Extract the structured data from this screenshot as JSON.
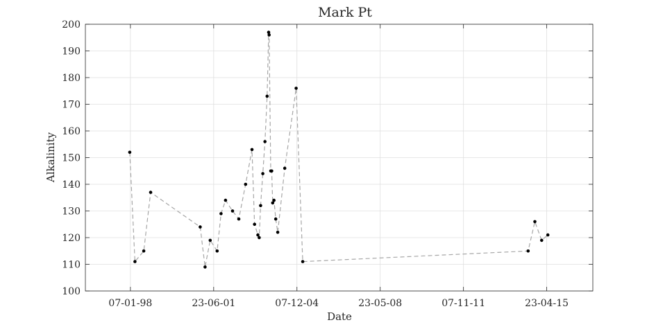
{
  "chart_data": {
    "type": "line",
    "title": "Mark Pt",
    "xlabel": "Date",
    "ylabel": "Alkalinity",
    "ylim": [
      100,
      200
    ],
    "yticks": [
      100,
      110,
      120,
      130,
      140,
      150,
      160,
      170,
      180,
      190,
      200
    ],
    "xlim": [
      "1996-02-24",
      "2017-03-22"
    ],
    "xticks": [
      {
        "date": "1998-01-07",
        "label": "07-01-98"
      },
      {
        "date": "2001-06-23",
        "label": "23-06-01"
      },
      {
        "date": "2004-12-07",
        "label": "07-12-04"
      },
      {
        "date": "2008-05-23",
        "label": "23-05-08"
      },
      {
        "date": "2011-11-07",
        "label": "07-11-11"
      },
      {
        "date": "2015-04-23",
        "label": "23-04-15"
      }
    ],
    "grid": true,
    "series": [
      {
        "line_style": "dashed",
        "line_color": "#a6a6a6",
        "marker_color": "#000000",
        "x": [
          "1997-12-28",
          "1998-03-17",
          "1998-07-28",
          "1998-11-10",
          "2000-12-01",
          "2001-02-12",
          "2001-05-01",
          "2001-08-15",
          "2001-10-12",
          "2001-12-20",
          "2002-04-05",
          "2002-07-09",
          "2002-10-20",
          "2003-01-25",
          "2003-03-05",
          "2003-04-25",
          "2003-05-15",
          "2003-06-05",
          "2003-07-08",
          "2003-08-10",
          "2003-09-12",
          "2003-10-05",
          "2003-10-12",
          "2003-11-05",
          "2003-11-20",
          "2003-12-05",
          "2003-12-25",
          "2004-01-20",
          "2004-02-20",
          "2004-06-05",
          "2004-11-25",
          "2005-03-05",
          "2014-07-15",
          "2014-10-25",
          "2015-02-05",
          "2015-05-10"
        ],
        "y": [
          152,
          111,
          115,
          137,
          124,
          109,
          119,
          115,
          129,
          134,
          130,
          127,
          140,
          153,
          125,
          121,
          120,
          132,
          144,
          156,
          173,
          197,
          196,
          145,
          145,
          133,
          134,
          127,
          122,
          146,
          176,
          111,
          115,
          126,
          119,
          121
        ]
      }
    ]
  }
}
